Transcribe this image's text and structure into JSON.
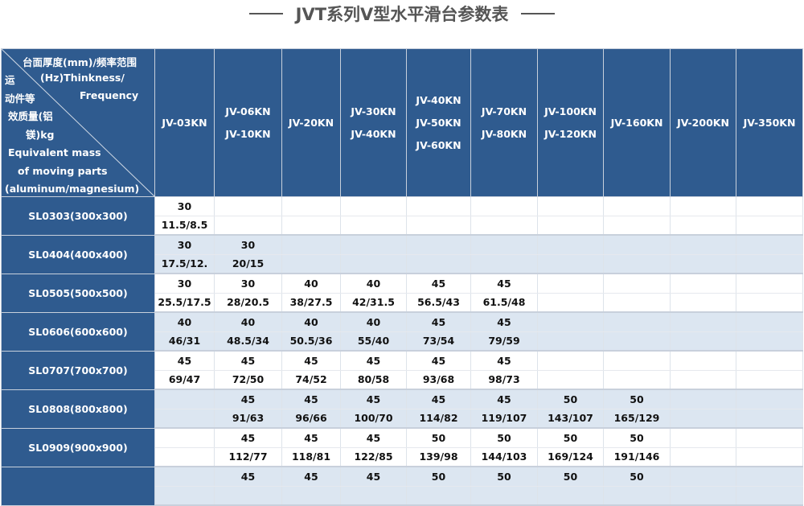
{
  "title": "JVT系列V型水平滑台参数表",
  "corner": {
    "top_line1": "台面厚度(mm)/频率范围",
    "top_line2": "(Hz)Thinkness/",
    "top_line3": "Frequency",
    "left_lines": [
      "运",
      "动件等",
      "效质量(铝",
      "镁)kg",
      "Equivalent mass",
      "of moving parts",
      "(aluminum/magnesium)"
    ]
  },
  "columns": [
    [
      "JV-03KN"
    ],
    [
      "JV-06KN",
      "JV-10KN"
    ],
    [
      "JV-20KN"
    ],
    [
      "JV-30KN",
      "JV-40KN"
    ],
    [
      "JV-40KN",
      "JV-50KN",
      "JV-60KN"
    ],
    [
      "JV-70KN",
      "JV-80KN"
    ],
    [
      "JV-100KN",
      "JV-120KN"
    ],
    [
      "JV-160KN"
    ],
    [
      "JV-200KN"
    ],
    [
      "JV-350KN"
    ]
  ],
  "rows": [
    {
      "label": "SL0303(300x300)",
      "thickness": [
        "30",
        "",
        "",
        "",
        "",
        "",
        "",
        "",
        "",
        ""
      ],
      "mass": [
        "11.5/8.5",
        "",
        "",
        "",
        "",
        "",
        "",
        "",
        "",
        ""
      ]
    },
    {
      "label": "SL0404(400x400)",
      "thickness": [
        "30",
        "30",
        "",
        "",
        "",
        "",
        "",
        "",
        "",
        ""
      ],
      "mass": [
        "17.5/12.",
        "20/15",
        "",
        "",
        "",
        "",
        "",
        "",
        "",
        ""
      ]
    },
    {
      "label": "SL0505(500x500)",
      "thickness": [
        "30",
        "30",
        "40",
        "40",
        "45",
        "45",
        "",
        "",
        "",
        ""
      ],
      "mass": [
        "25.5/17.5",
        "28/20.5",
        "38/27.5",
        "42/31.5",
        "56.5/43",
        "61.5/48",
        "",
        "",
        "",
        ""
      ]
    },
    {
      "label": "SL0606(600x600)",
      "thickness": [
        "40",
        "40",
        "40",
        "40",
        "45",
        "45",
        "",
        "",
        "",
        ""
      ],
      "mass": [
        "46/31",
        "48.5/34",
        "50.5/36",
        "55/40",
        "73/54",
        "79/59",
        "",
        "",
        "",
        ""
      ]
    },
    {
      "label": "SL0707(700x700)",
      "thickness": [
        "45",
        "45",
        "45",
        "45",
        "45",
        "45",
        "",
        "",
        "",
        ""
      ],
      "mass": [
        "69/47",
        "72/50",
        "74/52",
        "80/58",
        "93/68",
        "98/73",
        "",
        "",
        "",
        ""
      ]
    },
    {
      "label": "SL0808(800x800)",
      "thickness": [
        "",
        "45",
        "45",
        "45",
        "45",
        "45",
        "50",
        "50",
        "",
        ""
      ],
      "mass": [
        "",
        "91/63",
        "96/66",
        "100/70",
        "114/82",
        "119/107",
        "143/107",
        "165/129",
        "",
        ""
      ]
    },
    {
      "label": "SL0909(900x900)",
      "thickness": [
        "",
        "45",
        "45",
        "45",
        "50",
        "50",
        "50",
        "50",
        "",
        ""
      ],
      "mass": [
        "",
        "112/77",
        "118/81",
        "122/85",
        "139/98",
        "144/103",
        "169/124",
        "191/146",
        "",
        ""
      ]
    },
    {
      "label": "",
      "thickness": [
        "",
        "45",
        "45",
        "45",
        "50",
        "50",
        "50",
        "50",
        "",
        ""
      ],
      "mass": [
        "",
        "",
        "",
        "",
        "",
        "",
        "",
        "",
        "",
        ""
      ]
    }
  ]
}
